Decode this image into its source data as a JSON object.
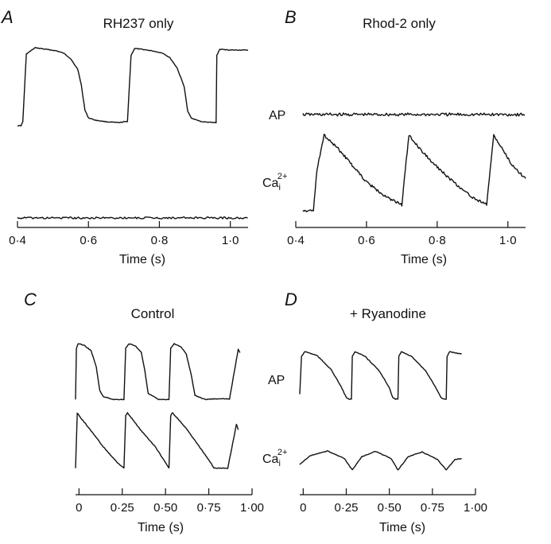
{
  "chart_data": [
    {
      "panel": "A",
      "type": "line",
      "title": "RH237 only",
      "xlabel": "Time (s)",
      "ylabel": "",
      "xlim": [
        0.4,
        1.05
      ],
      "xticks": [
        0.4,
        0.6,
        0.8,
        1.0
      ],
      "xtick_labels": [
        "0·4",
        "0·6",
        "0·8",
        "1·0"
      ],
      "grid": false,
      "series": [
        {
          "label": "",
          "x": [
            0.4,
            0.41,
            0.415,
            0.425,
            0.45,
            0.48,
            0.51,
            0.53,
            0.55,
            0.57,
            0.58,
            0.59,
            0.6,
            0.62,
            0.65,
            0.68,
            0.69,
            0.7,
            0.71,
            0.72,
            0.73,
            0.75,
            0.78,
            0.81,
            0.83,
            0.85,
            0.87,
            0.88,
            0.89,
            0.9,
            0.92,
            0.95,
            0.96,
            0.962,
            0.97,
            1.0,
            1.05
          ],
          "y": [
            0.0,
            0.0,
            0.05,
            0.92,
            1.0,
            0.98,
            0.96,
            0.93,
            0.86,
            0.72,
            0.52,
            0.2,
            0.1,
            0.07,
            0.05,
            0.04,
            0.04,
            0.05,
            0.05,
            0.9,
            0.99,
            0.98,
            0.96,
            0.93,
            0.87,
            0.74,
            0.5,
            0.18,
            0.1,
            0.08,
            0.05,
            0.04,
            0.04,
            0.9,
            0.98,
            0.97,
            0.97
          ]
        },
        {
          "label": "",
          "x": [
            0.4,
            1.05
          ],
          "y": [
            -1.25,
            -1.25
          ]
        }
      ]
    },
    {
      "panel": "B",
      "type": "line",
      "title": "Rhod-2 only",
      "xlabel": "Time (s)",
      "ylabel": "",
      "xlim": [
        0.4,
        1.05
      ],
      "xticks": [
        0.4,
        0.6,
        0.8,
        1.0
      ],
      "xtick_labels": [
        "0·4",
        "0·6",
        "0·8",
        "1·0"
      ],
      "grid": false,
      "series": [
        {
          "label": "AP",
          "x": [
            0.42,
            1.05
          ],
          "y": [
            0.0,
            0.0
          ]
        },
        {
          "label": "Ca",
          "label_sub": "i",
          "label_sup": "2+",
          "x": [
            0.42,
            0.45,
            0.46,
            0.48,
            0.52,
            0.56,
            0.6,
            0.65,
            0.69,
            0.7,
            0.71,
            0.72,
            0.75,
            0.8,
            0.85,
            0.9,
            0.93,
            0.94,
            0.95,
            0.96,
            0.98,
            1.01,
            1.05
          ],
          "y": [
            0.0,
            0.0,
            0.55,
            1.0,
            0.82,
            0.6,
            0.38,
            0.2,
            0.1,
            0.08,
            0.55,
            1.0,
            0.82,
            0.58,
            0.36,
            0.18,
            0.1,
            0.08,
            0.55,
            1.0,
            0.85,
            0.62,
            0.42
          ]
        }
      ]
    },
    {
      "panel": "C",
      "type": "line",
      "title": "Control",
      "xlabel": "Time (s)",
      "ylabel": "",
      "xlim": [
        -0.02,
        1.0
      ],
      "xticks": [
        0,
        0.25,
        0.5,
        0.75,
        1.0
      ],
      "xtick_labels": [
        "0",
        "0·25",
        "0·50",
        "0·75",
        "1·00"
      ],
      "grid": false,
      "series": [
        {
          "label": "",
          "x": [
            -0.02,
            -0.015,
            -0.005,
            0.03,
            0.07,
            0.1,
            0.12,
            0.14,
            0.2,
            0.26,
            0.27,
            0.29,
            0.33,
            0.36,
            0.38,
            0.4,
            0.46,
            0.52,
            0.53,
            0.55,
            0.59,
            0.62,
            0.65,
            0.67,
            0.73,
            0.77,
            0.78,
            0.79,
            0.8,
            0.83,
            0.84,
            0.87,
            0.92,
            0.93
          ],
          "y": [
            0.05,
            0.92,
            1.0,
            0.97,
            0.88,
            0.6,
            0.2,
            0.1,
            0.05,
            0.05,
            0.92,
            1.0,
            0.95,
            0.85,
            0.55,
            0.15,
            0.05,
            0.05,
            0.92,
            1.0,
            0.94,
            0.82,
            0.45,
            0.12,
            0.05,
            0.06,
            0.06,
            0.06,
            0.06,
            0.06,
            0.06,
            0.06,
            0.9,
            0.85
          ]
        },
        {
          "label": "",
          "x": [
            -0.02,
            -0.01,
            0.0,
            0.06,
            0.14,
            0.22,
            0.26,
            0.27,
            0.28,
            0.35,
            0.44,
            0.5,
            0.52,
            0.53,
            0.54,
            0.62,
            0.7,
            0.76,
            0.78,
            0.79,
            0.8,
            0.86,
            0.91,
            0.92
          ],
          "y": [
            0.02,
            1.0,
            0.95,
            0.72,
            0.4,
            0.12,
            0.02,
            0.95,
            1.0,
            0.72,
            0.4,
            0.12,
            0.02,
            0.95,
            1.0,
            0.72,
            0.38,
            0.12,
            0.02,
            0.02,
            0.02,
            0.02,
            0.8,
            0.7
          ]
        }
      ]
    },
    {
      "panel": "D",
      "type": "line",
      "title": "+ Ryanodine",
      "xlabel": "Time (s)",
      "ylabel": "",
      "xlim": [
        -0.02,
        1.0
      ],
      "xticks": [
        0,
        0.25,
        0.5,
        0.75,
        1.0
      ],
      "xtick_labels": [
        "0",
        "0·25",
        "0·50",
        "0·75",
        "1·00"
      ],
      "grid": false,
      "series": [
        {
          "label": "AP",
          "x": [
            -0.02,
            -0.01,
            0.01,
            0.08,
            0.16,
            0.22,
            0.25,
            0.265,
            0.28,
            0.285,
            0.3,
            0.36,
            0.44,
            0.5,
            0.52,
            0.535,
            0.55,
            0.555,
            0.57,
            0.63,
            0.71,
            0.77,
            0.8,
            0.815,
            0.83,
            0.835,
            0.85,
            0.9,
            0.92
          ],
          "y": [
            0.15,
            0.9,
            1.0,
            0.92,
            0.65,
            0.3,
            0.08,
            0.05,
            0.05,
            0.9,
            1.0,
            0.9,
            0.62,
            0.28,
            0.08,
            0.05,
            0.05,
            0.9,
            1.0,
            0.9,
            0.62,
            0.28,
            0.08,
            0.05,
            0.05,
            0.9,
            1.0,
            0.96,
            0.95
          ]
        },
        {
          "label": "Ca",
          "label_sub": "i",
          "label_sup": "2+",
          "x": [
            -0.02,
            0.04,
            0.14,
            0.24,
            0.285,
            0.34,
            0.42,
            0.51,
            0.55,
            0.61,
            0.69,
            0.78,
            0.83,
            0.88,
            0.92
          ],
          "y": [
            0.3,
            0.75,
            1.0,
            0.6,
            0.0,
            0.7,
            0.98,
            0.6,
            0.0,
            0.7,
            0.95,
            0.55,
            0.0,
            0.55,
            0.6
          ]
        }
      ]
    }
  ]
}
